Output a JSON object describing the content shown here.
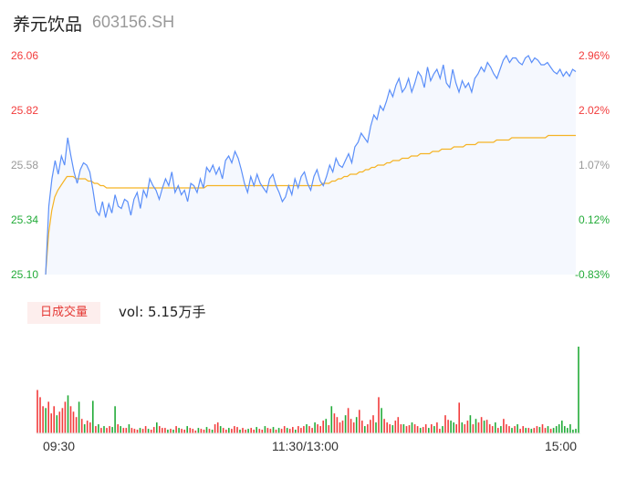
{
  "header": {
    "name": "养元饮品",
    "code": "603156.SH"
  },
  "colors": {
    "up": "#f23c3c",
    "down": "#22ab38",
    "neutral": "#999999",
    "price_line": "#5b8ff9",
    "avg_line": "#f5b324",
    "area_fill": "#f5f8fe",
    "badge_bg": "#fdeeed",
    "badge_text": "#e53935"
  },
  "volume_panel": {
    "badge": "日成交量",
    "vol_text": "vol: 5.15万手"
  },
  "chart_data": [
    {
      "type": "line",
      "title": "",
      "y_left_ticks": [
        "26.06",
        "25.82",
        "25.58",
        "25.34",
        "25.10"
      ],
      "y_right_ticks": [
        "2.96%",
        "2.02%",
        "1.07%",
        "0.12%",
        "-0.83%"
      ],
      "ylim": [
        25.1,
        26.06
      ],
      "x_ticks": [
        "09:30",
        "11:30/13:00",
        "15:00"
      ],
      "grid": false,
      "series": [
        {
          "name": "price",
          "values": [
            25.1,
            25.4,
            25.52,
            25.6,
            25.54,
            25.62,
            25.58,
            25.7,
            25.62,
            25.55,
            25.5,
            25.56,
            25.59,
            25.58,
            25.55,
            25.47,
            25.38,
            25.36,
            25.42,
            25.35,
            25.41,
            25.37,
            25.45,
            25.4,
            25.39,
            25.43,
            25.42,
            25.36,
            25.43,
            25.46,
            25.39,
            25.47,
            25.44,
            25.52,
            25.49,
            25.47,
            25.43,
            25.48,
            25.52,
            25.49,
            25.55,
            25.46,
            25.49,
            25.45,
            25.47,
            25.42,
            25.5,
            25.49,
            25.46,
            25.52,
            25.48,
            25.57,
            25.55,
            25.58,
            25.54,
            25.57,
            25.52,
            25.6,
            25.62,
            25.59,
            25.64,
            25.61,
            25.56,
            25.5,
            25.46,
            25.53,
            25.49,
            25.54,
            25.5,
            25.48,
            25.46,
            25.52,
            25.54,
            25.49,
            25.46,
            25.42,
            25.44,
            25.49,
            25.45,
            25.52,
            25.48,
            25.53,
            25.55,
            25.5,
            25.47,
            25.53,
            25.56,
            25.51,
            25.49,
            25.53,
            25.58,
            25.55,
            25.61,
            25.58,
            25.57,
            25.6,
            25.63,
            25.59,
            25.66,
            25.68,
            25.72,
            25.7,
            25.68,
            25.75,
            25.8,
            25.78,
            25.84,
            25.82,
            25.86,
            25.91,
            25.88,
            25.93,
            25.96,
            25.9,
            25.92,
            25.96,
            25.9,
            25.94,
            25.99,
            25.97,
            25.92,
            26.01,
            25.95,
            25.98,
            26.0,
            25.96,
            26.02,
            25.94,
            25.92,
            26.0,
            25.94,
            25.9,
            25.95,
            25.92,
            25.94,
            25.9,
            25.96,
            25.98,
            26.01,
            25.99,
            26.03,
            26.01,
            25.98,
            25.96,
            26.0,
            26.04,
            26.06,
            26.03,
            26.05,
            26.05,
            26.03,
            26.02,
            26.05,
            26.06,
            26.03,
            26.05,
            26.04,
            26.02,
            26.02,
            26.03,
            26.01,
            25.99,
            25.98,
            26.0,
            25.97,
            25.99,
            25.97,
            26.0,
            25.99
          ]
        },
        {
          "name": "avg",
          "values": [
            25.1,
            25.28,
            25.38,
            25.44,
            25.47,
            25.49,
            25.51,
            25.53,
            25.53,
            25.53,
            25.52,
            25.52,
            25.52,
            25.52,
            25.51,
            25.51,
            25.5,
            25.5,
            25.49,
            25.49,
            25.48,
            25.48,
            25.48,
            25.48,
            25.48,
            25.48,
            25.48,
            25.48,
            25.48,
            25.48,
            25.48,
            25.48,
            25.48,
            25.48,
            25.48,
            25.48,
            25.48,
            25.48,
            25.48,
            25.48,
            25.48,
            25.48,
            25.48,
            25.48,
            25.48,
            25.48,
            25.48,
            25.48,
            25.48,
            25.48,
            25.48,
            25.48,
            25.48,
            25.49,
            25.49,
            25.49,
            25.49,
            25.49,
            25.49,
            25.49,
            25.49,
            25.49,
            25.49,
            25.49,
            25.49,
            25.49,
            25.49,
            25.49,
            25.49,
            25.49,
            25.49,
            25.49,
            25.49,
            25.49,
            25.49,
            25.49,
            25.49,
            25.49,
            25.49,
            25.49,
            25.49,
            25.49,
            25.49,
            25.49,
            25.49,
            25.49,
            25.49,
            25.49,
            25.49,
            25.49,
            25.49,
            25.5,
            25.5,
            25.5,
            25.51,
            25.51,
            25.52,
            25.52,
            25.53,
            25.53,
            25.54,
            25.54,
            25.54,
            25.55,
            25.55,
            25.56,
            25.56,
            25.57,
            25.57,
            25.58,
            25.58,
            25.58,
            25.59,
            25.59,
            25.6,
            25.6,
            25.6,
            25.61,
            25.61,
            25.61,
            25.62,
            25.62,
            25.62,
            25.63,
            25.63,
            25.63,
            25.63,
            25.64,
            25.64,
            25.64,
            25.65,
            25.65,
            25.65,
            25.65,
            25.66,
            25.66,
            25.66,
            25.66,
            25.67,
            25.67,
            25.67,
            25.67,
            25.68,
            25.68,
            25.68,
            25.68,
            25.68,
            25.68,
            25.69,
            25.69,
            25.69,
            25.69,
            25.69,
            25.7,
            25.7,
            25.7,
            25.7,
            25.7,
            25.7,
            25.7,
            25.7,
            25.7,
            25.7,
            25.7,
            25.7,
            25.71,
            25.71,
            25.71,
            25.71,
            25.71,
            25.71,
            25.71,
            25.71,
            25.71,
            25.71
          ]
        }
      ]
    },
    {
      "type": "bar",
      "title": "日成交量",
      "values": [
        48,
        40,
        30,
        28,
        35,
        22,
        30,
        20,
        24,
        28,
        35,
        42,
        30,
        24,
        18,
        35,
        16,
        10,
        14,
        12,
        36,
        8,
        10,
        6,
        8,
        6,
        8,
        7,
        30,
        10,
        8,
        6,
        6,
        10,
        6,
        5,
        4,
        6,
        5,
        8,
        5,
        4,
        7,
        12,
        8,
        6,
        6,
        4,
        5,
        4,
        8,
        6,
        5,
        4,
        8,
        6,
        5,
        3,
        6,
        5,
        4,
        7,
        5,
        4,
        10,
        12,
        8,
        6,
        4,
        6,
        5,
        8,
        7,
        4,
        6,
        4,
        5,
        6,
        4,
        7,
        5,
        4,
        8,
        6,
        5,
        7,
        4,
        6,
        5,
        8,
        6,
        5,
        7,
        4,
        8,
        6,
        8,
        10,
        8,
        6,
        12,
        10,
        8,
        14,
        16,
        9,
        30,
        22,
        18,
        12,
        14,
        20,
        28,
        16,
        12,
        18,
        26,
        14,
        8,
        10,
        15,
        20,
        12,
        40,
        28,
        16,
        12,
        10,
        9,
        14,
        18,
        10,
        10,
        8,
        9,
        12,
        10,
        8,
        6,
        7,
        10,
        6,
        10,
        8,
        12,
        5,
        8,
        20,
        15,
        14,
        12,
        10,
        34,
        12,
        10,
        14,
        20,
        10,
        16,
        12,
        18,
        14,
        15,
        10,
        8,
        12,
        6,
        8,
        16,
        10,
        8,
        6,
        8,
        10,
        5,
        8,
        6,
        6,
        5,
        6,
        8,
        7,
        10,
        6,
        8,
        5,
        6,
        8,
        10,
        14,
        8,
        6,
        10,
        4,
        5,
        96
      ],
      "colors": [
        "up",
        "up",
        "up",
        "down",
        "up",
        "up",
        "up",
        "down",
        "up",
        "up",
        "up",
        "down",
        "up",
        "up",
        "up",
        "down",
        "up",
        "down",
        "up",
        "up",
        "down",
        "up",
        "down",
        "up",
        "down",
        "up",
        "up",
        "down",
        "down",
        "up",
        "down",
        "up",
        "up",
        "down",
        "up",
        "up",
        "up",
        "down",
        "up",
        "up",
        "down",
        "up",
        "up",
        "down",
        "up",
        "up",
        "up",
        "down",
        "up",
        "down",
        "up",
        "down",
        "up",
        "up",
        "down",
        "up",
        "up",
        "up",
        "down",
        "up",
        "up",
        "down",
        "up",
        "down",
        "up",
        "up",
        "down",
        "up",
        "up",
        "down",
        "up",
        "up",
        "up",
        "down",
        "up",
        "up",
        "down",
        "up",
        "up",
        "down",
        "up",
        "up",
        "down",
        "up",
        "up",
        "down",
        "up",
        "down",
        "up",
        "up",
        "down",
        "up",
        "up",
        "down",
        "up",
        "up",
        "up",
        "down",
        "up",
        "up",
        "down",
        "up",
        "up",
        "up",
        "down",
        "up",
        "down",
        "up",
        "up",
        "up",
        "up",
        "down",
        "up",
        "up",
        "up",
        "down",
        "up",
        "up",
        "down",
        "up",
        "up",
        "up",
        "down",
        "up",
        "down",
        "up",
        "up",
        "up",
        "down",
        "up",
        "up",
        "up",
        "down",
        "up",
        "up",
        "down",
        "up",
        "up",
        "down",
        "up",
        "up",
        "down",
        "up",
        "down",
        "up",
        "up",
        "down",
        "up",
        "up",
        "down",
        "down",
        "up",
        "up",
        "down",
        "up",
        "up",
        "down",
        "up",
        "down",
        "up",
        "up",
        "down",
        "up",
        "up",
        "up",
        "down",
        "up",
        "down",
        "up",
        "up",
        "up",
        "down",
        "up",
        "down",
        "up",
        "up",
        "down",
        "up",
        "down",
        "up",
        "up",
        "down",
        "up",
        "up",
        "down",
        "up",
        "down",
        "down"
      ]
    }
  ]
}
